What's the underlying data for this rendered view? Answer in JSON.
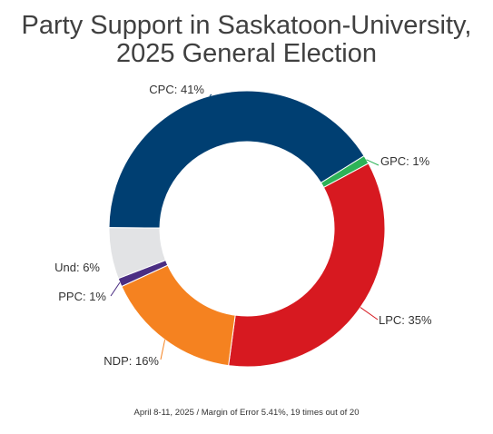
{
  "chart_data": {
    "type": "pie",
    "variant": "donut",
    "title_lines": [
      "Party Support in Saskatoon-University,",
      "2025 General Election"
    ],
    "footnote": "April 8-11, 2025 / Margin of Error 5.41%, 19 times out of 20",
    "slices": [
      {
        "label": "CPC: 41%",
        "name": "CPC",
        "value": 41,
        "color": "#003f72"
      },
      {
        "label": "GPC: 1%",
        "name": "GPC",
        "value": 1,
        "color": "#2db357"
      },
      {
        "label": "LPC: 35%",
        "name": "LPC",
        "value": 35,
        "color": "#d71920"
      },
      {
        "label": "NDP: 16%",
        "name": "NDP",
        "value": 16,
        "color": "#f58220"
      },
      {
        "label": "PPC: 1%",
        "name": "PPC",
        "value": 1,
        "color": "#4b2e83"
      },
      {
        "label": "Und: 6%",
        "name": "Und",
        "value": 6,
        "color": "#e2e3e5"
      }
    ]
  }
}
